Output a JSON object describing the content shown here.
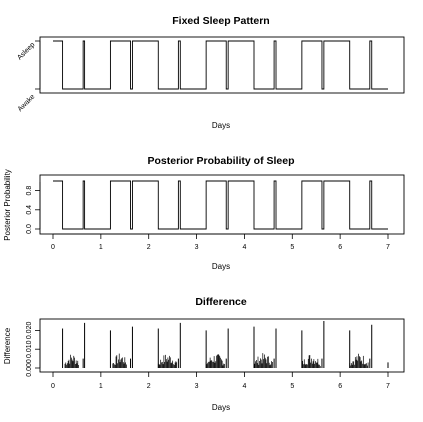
{
  "chart_data": [
    {
      "type": "line",
      "title": "Fixed Sleep Pattern",
      "xlabel": "Days",
      "ylabel": "",
      "xlim": [
        0,
        7
      ],
      "y_categories": [
        "Awake",
        "Asleep"
      ],
      "series": [
        {
          "x": [
            0.0,
            0.2,
            0.2,
            0.63,
            0.63,
            0.66,
            0.66,
            1.2,
            1.2,
            1.62,
            1.62,
            1.66,
            1.66,
            2.2,
            2.2,
            2.62,
            2.62,
            2.66,
            2.66,
            3.2,
            3.2,
            3.62,
            3.62,
            3.66,
            3.66,
            4.2,
            4.2,
            4.62,
            4.62,
            4.66,
            4.66,
            5.2,
            5.2,
            5.62,
            5.62,
            5.66,
            5.66,
            6.2,
            6.2,
            6.62,
            6.62,
            6.66,
            6.66,
            7.0
          ],
          "y": [
            1,
            1,
            0,
            0,
            1,
            1,
            0,
            0,
            1,
            1,
            0,
            0,
            1,
            1,
            0,
            0,
            1,
            1,
            0,
            0,
            1,
            1,
            0,
            0,
            1,
            1,
            0,
            0,
            1,
            1,
            0,
            0,
            1,
            1,
            0,
            0,
            1,
            1,
            0,
            0,
            1,
            1,
            0,
            0
          ]
        }
      ]
    },
    {
      "type": "line",
      "title": "Posterior Probability of Sleep",
      "xlabel": "Days",
      "ylabel": "Posterior Probability",
      "xlim": [
        0,
        7
      ],
      "ylim": [
        0,
        1
      ],
      "xticks": [
        "0",
        "1",
        "2",
        "3",
        "4",
        "5",
        "6",
        "7"
      ],
      "yticks": [
        "0.0",
        "0.4",
        "0.8"
      ],
      "series": [
        {
          "x": [
            0.0,
            0.2,
            0.2,
            0.63,
            0.63,
            0.66,
            0.66,
            1.2,
            1.2,
            1.62,
            1.62,
            1.66,
            1.66,
            2.2,
            2.2,
            2.62,
            2.62,
            2.66,
            2.66,
            3.2,
            3.2,
            3.62,
            3.62,
            3.66,
            3.66,
            4.2,
            4.2,
            4.62,
            4.62,
            4.66,
            4.66,
            5.2,
            5.2,
            5.62,
            5.62,
            5.66,
            5.66,
            6.2,
            6.2,
            6.62,
            6.62,
            6.66,
            6.66,
            7.0
          ],
          "y": [
            1,
            1,
            0,
            0,
            1,
            1,
            0,
            0,
            1,
            1,
            0,
            0,
            1,
            1,
            0,
            0,
            1,
            1,
            0,
            0,
            1,
            1,
            0,
            0,
            1,
            1,
            0,
            0,
            1,
            1,
            0,
            0,
            1,
            1,
            0,
            0,
            1,
            1,
            0,
            0,
            1,
            1,
            0,
            0
          ]
        }
      ]
    },
    {
      "type": "bar",
      "title": "Difference",
      "xlabel": "Days",
      "ylabel": "Difference",
      "xlim": [
        0,
        7
      ],
      "ylim": [
        0,
        0.025
      ],
      "xticks": [
        "0",
        "1",
        "2",
        "3",
        "4",
        "5",
        "6",
        "7"
      ],
      "yticks": [
        "0.000",
        "0.010",
        "0.020"
      ],
      "spikes": {
        "x": [
          0.2,
          0.63,
          0.66,
          1.2,
          1.62,
          1.66,
          2.2,
          2.62,
          2.66,
          3.2,
          3.62,
          3.66,
          4.2,
          4.62,
          4.66,
          5.2,
          5.62,
          5.66,
          6.2,
          6.62,
          6.66,
          7.0
        ],
        "y": [
          0.021,
          0.005,
          0.024,
          0.02,
          0.005,
          0.022,
          0.021,
          0.005,
          0.024,
          0.02,
          0.005,
          0.021,
          0.022,
          0.005,
          0.021,
          0.02,
          0.005,
          0.025,
          0.02,
          0.005,
          0.023,
          0.003
        ]
      },
      "noise_bands": [
        {
          "x_start": 0.25,
          "x_end": 0.55,
          "y_max": 0.008
        },
        {
          "x_start": 1.25,
          "x_end": 1.55,
          "y_max": 0.008
        },
        {
          "x_start": 2.2,
          "x_end": 2.6,
          "y_max": 0.008
        },
        {
          "x_start": 3.2,
          "x_end": 3.6,
          "y_max": 0.008
        },
        {
          "x_start": 4.2,
          "x_end": 4.6,
          "y_max": 0.008
        },
        {
          "x_start": 5.2,
          "x_end": 5.6,
          "y_max": 0.008
        },
        {
          "x_start": 6.2,
          "x_end": 6.6,
          "y_max": 0.008
        }
      ]
    }
  ]
}
